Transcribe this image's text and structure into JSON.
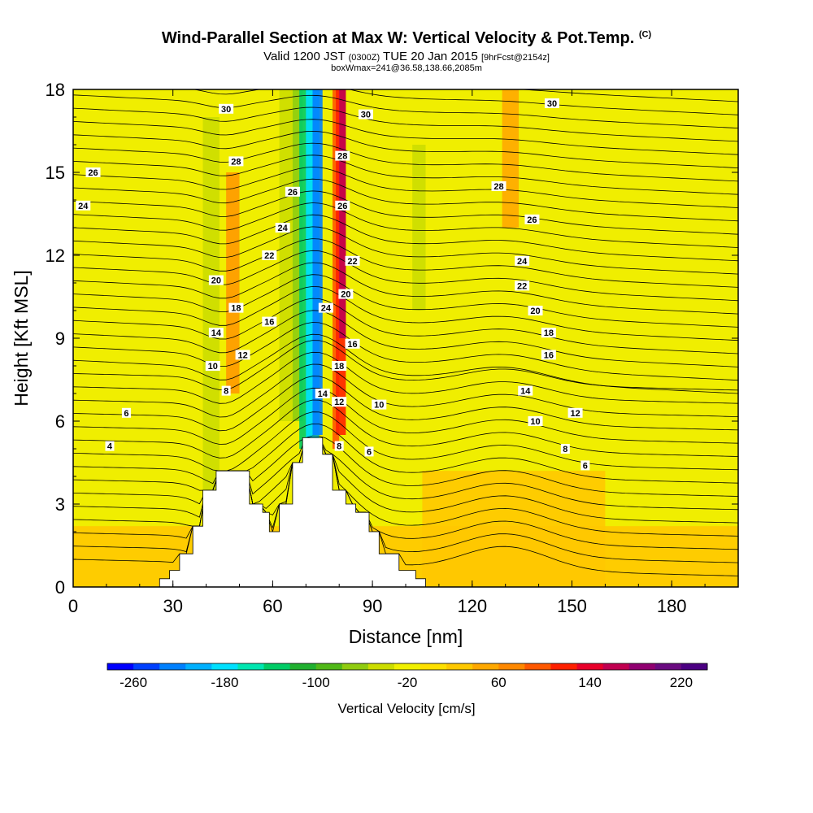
{
  "header": {
    "title": "Wind-Parallel Section at Max W: Vertical Velocity & Pot.Temp.",
    "title_mark": "(C)",
    "subtitle_valid": "Valid 1200 JST",
    "subtitle_utc": "(0300Z)",
    "subtitle_date": "TUE 20 Jan 2015",
    "subtitle_fcst": "[9hrFcst@2154z]",
    "subtitle2": "boxWmax=241@36.58,138.66,2085m"
  },
  "chart_data": {
    "type": "heatmap",
    "xlabel": "Distance [nm]",
    "ylabel": "Height [Kft MSL]",
    "xlim": [
      0,
      200
    ],
    "ylim": [
      0,
      18
    ],
    "xticks": [
      "0",
      "30",
      "60",
      "90",
      "120",
      "150",
      "180"
    ],
    "yticks": [
      "0",
      "3",
      "6",
      "9",
      "12",
      "15",
      "18"
    ],
    "colorbar": {
      "label": "Vertical Velocity [cm/s]",
      "tick_labels": [
        "-260",
        "-180",
        "-100",
        "-20",
        "60",
        "140",
        "220"
      ],
      "colors": [
        "#0000ff",
        "#0040ff",
        "#0080ff",
        "#00b0ff",
        "#00e0ff",
        "#00e6b0",
        "#00cc66",
        "#20b030",
        "#50b818",
        "#90cc10",
        "#ccdd00",
        "#f0f000",
        "#ffe000",
        "#ffc800",
        "#ffa800",
        "#ff8800",
        "#ff5800",
        "#ff2000",
        "#e8002a",
        "#c00050",
        "#900070",
        "#6a0a80",
        "#4b0082"
      ]
    },
    "background_levels": [
      {
        "x0": 0,
        "x1": 200,
        "y0": 0,
        "y1": 18,
        "color": "#f0ee00"
      }
    ],
    "vertical_velocity_features": [
      {
        "kind": "band",
        "color": "#ffc800",
        "x0": 0,
        "x1": 200,
        "y0": 0,
        "y1": 2.2
      },
      {
        "kind": "band",
        "color": "#ffc800",
        "x0": 105,
        "x1": 160,
        "y0": 0,
        "y1": 4.2
      },
      {
        "kind": "band",
        "color": "#ccdd00",
        "x0": 39,
        "x1": 44,
        "y0": 3.5,
        "y1": 17
      },
      {
        "kind": "band",
        "color": "#ff9900",
        "x0": 46,
        "x1": 50,
        "y0": 7,
        "y1": 15
      },
      {
        "kind": "band",
        "color": "#ccdd00",
        "x0": 62,
        "x1": 66,
        "y0": 6,
        "y1": 18
      },
      {
        "kind": "band",
        "color": "#8ccc10",
        "x0": 66,
        "x1": 69,
        "y0": 6,
        "y1": 18
      },
      {
        "kind": "band",
        "color": "#00cc66",
        "x0": 68,
        "x1": 72,
        "y0": 5,
        "y1": 18
      },
      {
        "kind": "band",
        "color": "#00e0ff",
        "x0": 70,
        "x1": 74,
        "y0": 5,
        "y1": 18
      },
      {
        "kind": "band",
        "color": "#0080ff",
        "x0": 72,
        "x1": 75,
        "y0": 5.5,
        "y1": 18
      },
      {
        "kind": "band",
        "color": "#ff5800",
        "x0": 78,
        "x1": 80,
        "y0": 5,
        "y1": 18
      },
      {
        "kind": "band",
        "color": "#ff2000",
        "x0": 79,
        "x1": 82,
        "y0": 5.5,
        "y1": 18
      },
      {
        "kind": "band",
        "color": "#c00050",
        "x0": 80,
        "x1": 82,
        "y0": 9,
        "y1": 18
      },
      {
        "kind": "band",
        "color": "#ccdd00",
        "x0": 102,
        "x1": 106,
        "y0": 10,
        "y1": 16
      },
      {
        "kind": "band",
        "color": "#ffa800",
        "x0": 129,
        "x1": 134,
        "y0": 13,
        "y1": 18
      }
    ],
    "terrain_profile": [
      [
        0,
        0
      ],
      [
        26,
        0
      ],
      [
        26,
        0.3
      ],
      [
        29,
        0.3
      ],
      [
        29,
        0.6
      ],
      [
        32,
        0.6
      ],
      [
        32,
        1.2
      ],
      [
        36,
        1.2
      ],
      [
        36,
        2.2
      ],
      [
        39,
        2.2
      ],
      [
        39,
        3.5
      ],
      [
        43,
        3.5
      ],
      [
        43,
        4.2
      ],
      [
        53,
        4.2
      ],
      [
        53,
        3
      ],
      [
        57,
        3
      ],
      [
        57,
        2.7
      ],
      [
        59,
        2.7
      ],
      [
        59,
        2
      ],
      [
        62,
        2
      ],
      [
        62,
        3
      ],
      [
        66,
        3
      ],
      [
        66,
        4.5
      ],
      [
        69,
        4.5
      ],
      [
        69,
        5.4
      ],
      [
        75,
        5.4
      ],
      [
        75,
        4.8
      ],
      [
        78,
        4.8
      ],
      [
        78,
        3.5
      ],
      [
        82,
        3.5
      ],
      [
        82,
        3
      ],
      [
        85,
        3
      ],
      [
        85,
        2.7
      ],
      [
        89,
        2.7
      ],
      [
        89,
        2
      ],
      [
        92,
        2
      ],
      [
        92,
        1.2
      ],
      [
        98,
        1.2
      ],
      [
        98,
        0.6
      ],
      [
        103,
        0.6
      ],
      [
        103,
        0.3
      ],
      [
        106,
        0.3
      ],
      [
        106,
        0
      ],
      [
        200,
        0
      ]
    ],
    "theta_contours": [
      {
        "value": 4,
        "label_pos": [
          11,
          5.1
        ]
      },
      {
        "value": 6,
        "label_pos": [
          16,
          6.3
        ]
      },
      {
        "value": 8,
        "label_pos": [
          46,
          7.1
        ]
      },
      {
        "value": 10,
        "label_pos": [
          42,
          8.0
        ]
      },
      {
        "value": 12,
        "label_pos": [
          51,
          8.4
        ]
      },
      {
        "value": 14,
        "label_pos": [
          43,
          9.2
        ]
      },
      {
        "value": 16,
        "label_pos": [
          59,
          9.6
        ]
      },
      {
        "value": 18,
        "label_pos": [
          49,
          10.1
        ]
      },
      {
        "value": 20,
        "label_pos": [
          43,
          11.1
        ]
      },
      {
        "value": 22,
        "label_pos": [
          59,
          12.0
        ]
      },
      {
        "value": 24,
        "label_pos": [
          63,
          13.0
        ]
      },
      {
        "value": 26,
        "label_pos": [
          66,
          14.3
        ]
      },
      {
        "value": 28,
        "label_pos": [
          49,
          15.4
        ]
      },
      {
        "value": 30,
        "label_pos": [
          46,
          17.3
        ]
      }
    ],
    "contour_labels": [
      {
        "text": "4",
        "x": 11,
        "y": 5.1
      },
      {
        "text": "6",
        "x": 16,
        "y": 6.3
      },
      {
        "text": "8",
        "x": 46,
        "y": 7.1
      },
      {
        "text": "10",
        "x": 42,
        "y": 8.0
      },
      {
        "text": "12",
        "x": 51,
        "y": 8.4
      },
      {
        "text": "14",
        "x": 43,
        "y": 9.2
      },
      {
        "text": "16",
        "x": 59,
        "y": 9.6
      },
      {
        "text": "18",
        "x": 49,
        "y": 10.1
      },
      {
        "text": "20",
        "x": 43,
        "y": 11.1
      },
      {
        "text": "22",
        "x": 59,
        "y": 12.0
      },
      {
        "text": "24",
        "x": 63,
        "y": 13.0
      },
      {
        "text": "26",
        "x": 66,
        "y": 14.3
      },
      {
        "text": "28",
        "x": 49,
        "y": 15.4
      },
      {
        "text": "30",
        "x": 46,
        "y": 17.3
      },
      {
        "text": "24",
        "x": 3,
        "y": 13.8
      },
      {
        "text": "26",
        "x": 6,
        "y": 15.0
      },
      {
        "text": "30",
        "x": 88,
        "y": 17.1
      },
      {
        "text": "28",
        "x": 81,
        "y": 15.6
      },
      {
        "text": "26",
        "x": 81,
        "y": 13.8
      },
      {
        "text": "22",
        "x": 84,
        "y": 11.8
      },
      {
        "text": "20",
        "x": 82,
        "y": 10.6
      },
      {
        "text": "24",
        "x": 76,
        "y": 10.1
      },
      {
        "text": "16",
        "x": 84,
        "y": 8.8
      },
      {
        "text": "18",
        "x": 80,
        "y": 8.0
      },
      {
        "text": "14",
        "x": 75,
        "y": 7.0
      },
      {
        "text": "12",
        "x": 80,
        "y": 6.7
      },
      {
        "text": "10",
        "x": 92,
        "y": 6.6
      },
      {
        "text": "8",
        "x": 80,
        "y": 5.1
      },
      {
        "text": "6",
        "x": 89,
        "y": 4.9
      },
      {
        "text": "30",
        "x": 144,
        "y": 17.5
      },
      {
        "text": "28",
        "x": 128,
        "y": 14.5
      },
      {
        "text": "26",
        "x": 138,
        "y": 13.3
      },
      {
        "text": "24",
        "x": 135,
        "y": 11.8
      },
      {
        "text": "22",
        "x": 135,
        "y": 10.9
      },
      {
        "text": "20",
        "x": 139,
        "y": 10.0
      },
      {
        "text": "18",
        "x": 143,
        "y": 9.2
      },
      {
        "text": "16",
        "x": 143,
        "y": 8.4
      },
      {
        "text": "14",
        "x": 136,
        "y": 7.1
      },
      {
        "text": "12",
        "x": 151,
        "y": 6.3
      },
      {
        "text": "10",
        "x": 139,
        "y": 6.0
      },
      {
        "text": "8",
        "x": 148,
        "y": 5.0
      },
      {
        "text": "6",
        "x": 154,
        "y": 4.4
      }
    ]
  }
}
